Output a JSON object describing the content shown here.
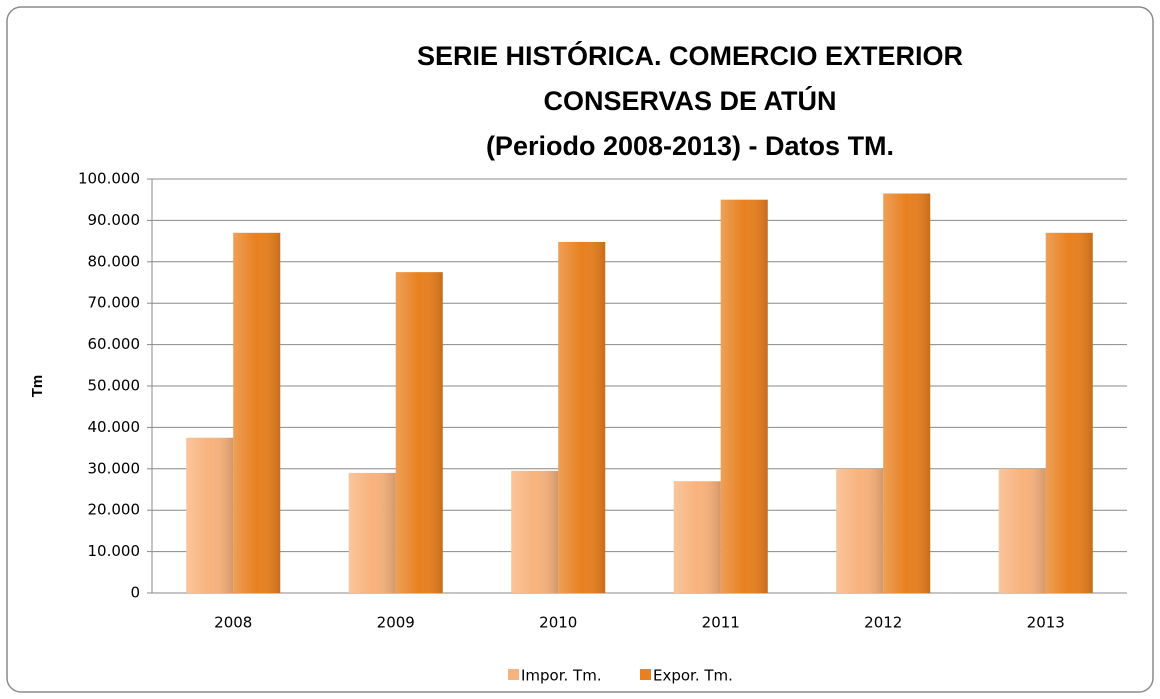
{
  "chart_data": {
    "type": "bar",
    "title": [
      "SERIE HISTÓRICA. COMERCIO EXTERIOR",
      "CONSERVAS DE ATÚN",
      "(Periodo 2008-2013) - Datos TM."
    ],
    "y_label": "Tm",
    "categories": [
      "2008",
      "2009",
      "2010",
      "2011",
      "2012",
      "2013"
    ],
    "series": [
      {
        "name": "Impor. Tm.",
        "color": "#f8b27c",
        "values": [
          37500,
          29000,
          29500,
          27000,
          30000,
          30000
        ]
      },
      {
        "name": "Expor. Tm.",
        "color": "#e8801f",
        "values": [
          87000,
          77500,
          84800,
          95000,
          96500,
          87000
        ]
      }
    ],
    "ylim": [
      0,
      100000
    ],
    "yticks": [
      0,
      {
        "value": 10000,
        "label": "10.000"
      },
      {
        "value": 20000,
        "label": "20.000"
      },
      {
        "value": 30000,
        "label": "30.000"
      },
      {
        "value": 40000,
        "label": "40.000"
      },
      {
        "value": 50000,
        "label": "50.000"
      },
      {
        "value": 60000,
        "label": "60.000"
      },
      {
        "value": 70000,
        "label": "70.000"
      },
      {
        "value": 80000,
        "label": "80.000"
      },
      {
        "value": 90000,
        "label": "90.000"
      },
      {
        "value": 100000,
        "label": "100.000"
      }
    ],
    "grid": true,
    "legend": "bottom"
  }
}
